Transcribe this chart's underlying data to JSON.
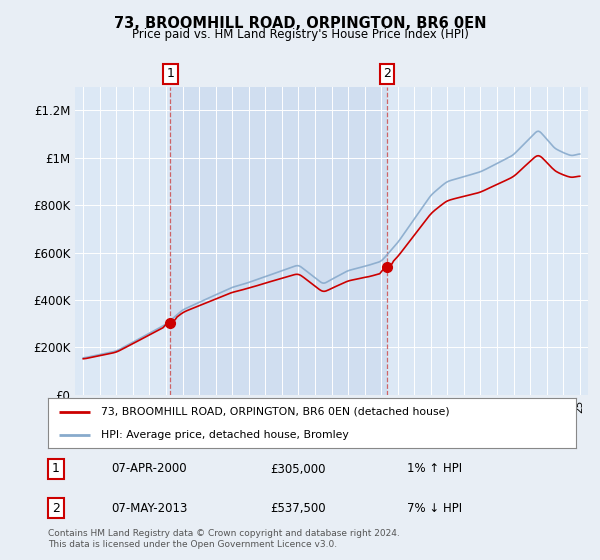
{
  "title": "73, BROOMHILL ROAD, ORPINGTON, BR6 0EN",
  "subtitle": "Price paid vs. HM Land Registry's House Price Index (HPI)",
  "bg_color": "#e8eef5",
  "plot_bg_color": "#dce8f5",
  "shaded_bg_color": "#c8d8ee",
  "legend_label_red": "73, BROOMHILL ROAD, ORPINGTON, BR6 0EN (detached house)",
  "legend_label_blue": "HPI: Average price, detached house, Bromley",
  "annotation1_date": "07-APR-2000",
  "annotation1_price": "£305,000",
  "annotation1_hpi": "1% ↑ HPI",
  "annotation2_date": "07-MAY-2013",
  "annotation2_price": "£537,500",
  "annotation2_hpi": "7% ↓ HPI",
  "footer": "Contains HM Land Registry data © Crown copyright and database right 2024.\nThis data is licensed under the Open Government Licence v3.0.",
  "ylim": [
    0,
    1300000
  ],
  "yticks": [
    0,
    200000,
    400000,
    600000,
    800000,
    1000000,
    1200000
  ],
  "ytick_labels": [
    "£0",
    "£200K",
    "£400K",
    "£600K",
    "£800K",
    "£1M",
    "£1.2M"
  ],
  "marker1_year": 2000.27,
  "marker1_value": 305000,
  "marker2_year": 2013.35,
  "marker2_value": 537500,
  "red_color": "#cc0000",
  "blue_color": "#88aacc",
  "dashed_color": "#cc4444"
}
